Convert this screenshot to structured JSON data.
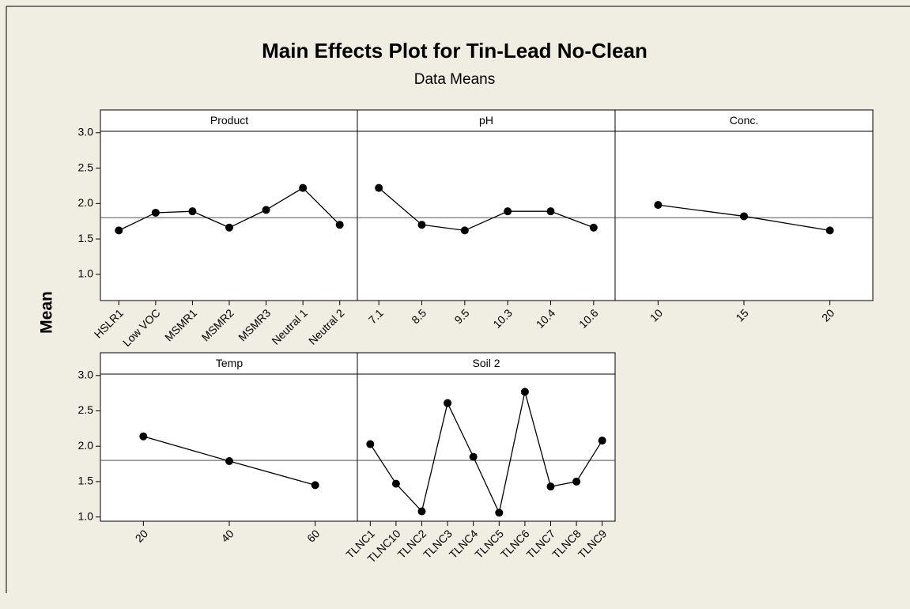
{
  "header": {
    "title": "Main Effects Plot for Tin-Lead No-Clean",
    "subtitle": "Data Means",
    "ylabel": "Mean"
  },
  "chart_data": [
    {
      "type": "line",
      "title": "Product",
      "categories": [
        "HSLR1",
        "Low VOC",
        "MSMR1",
        "MSMR2",
        "MSMR3",
        "Neutral 1",
        "Neutral 2"
      ],
      "values": [
        1.62,
        1.87,
        1.89,
        1.66,
        1.91,
        2.22,
        1.7
      ],
      "reference": 1.8,
      "color": "#000000",
      "ylim": [
        0.63,
        3.02
      ],
      "yticks": [
        {
          "value": 1,
          "label": "1.0"
        },
        1.5,
        {
          "value": 2,
          "label": "2.0"
        },
        2.5,
        {
          "value": 3,
          "label": "3.0"
        }
      ]
    },
    {
      "type": "line",
      "title": "pH",
      "categories": [
        "7.1",
        "8.5",
        "9.5",
        "10.3",
        "10.4",
        "10.6"
      ],
      "values": [
        2.22,
        1.7,
        1.62,
        1.89,
        1.89,
        1.66
      ],
      "reference": 1.8,
      "color": "#000000",
      "ylim": [
        0.63,
        3.02
      ]
    },
    {
      "type": "line",
      "title": "Conc.",
      "categories": [
        "10",
        "15",
        "20"
      ],
      "values": [
        1.98,
        1.82,
        1.62
      ],
      "reference": 1.8,
      "color": "#000000",
      "ylim": [
        0.63,
        3.02
      ]
    },
    {
      "type": "line",
      "title": "Temp",
      "categories": [
        "20",
        "40",
        "60"
      ],
      "values": [
        2.14,
        1.79,
        1.45
      ],
      "reference": 1.8,
      "color": "#000000",
      "ylim": [
        0.94,
        3.02
      ],
      "yticks": [
        {
          "value": 1,
          "label": "1.0"
        },
        1.5,
        {
          "value": 2,
          "label": "2.0"
        },
        2.5,
        {
          "value": 3,
          "label": "3.0"
        }
      ]
    },
    {
      "type": "line",
      "title": "Soil 2",
      "categories": [
        "TLNC1",
        "TLNC10",
        "TLNC2",
        "TLNC3",
        "TLNC4",
        "TLNC5",
        "TLNC6",
        "TLNC7",
        "TLNC8",
        "TLNC9"
      ],
      "values": [
        2.03,
        1.47,
        1.08,
        2.61,
        1.85,
        1.06,
        2.77,
        1.43,
        1.5,
        2.08
      ],
      "reference": 1.8,
      "color": "#000000",
      "ylim": [
        0.94,
        3.02
      ]
    }
  ]
}
